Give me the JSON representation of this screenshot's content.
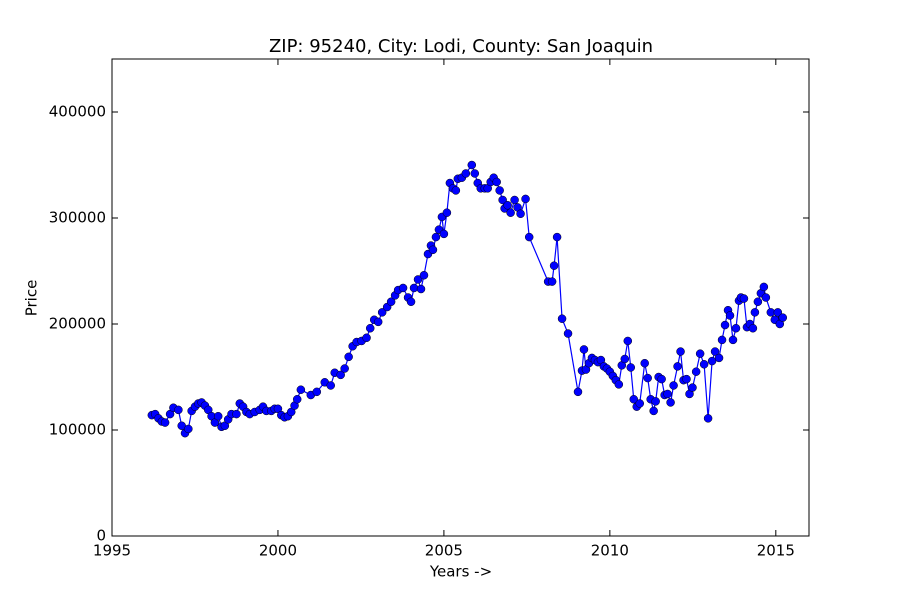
{
  "chart_data": {
    "type": "line",
    "title": "ZIP: 95240, City: Lodi, County: San Joaquin",
    "xlabel": "Years ->",
    "ylabel": "Price",
    "color": "#0000ff",
    "xlim": [
      1995,
      2016
    ],
    "ylim": [
      0,
      450000
    ],
    "xticks": [
      1995,
      2000,
      2005,
      2010,
      2015
    ],
    "yticks": [
      0,
      100000,
      200000,
      300000,
      400000
    ],
    "x": [
      1996.2,
      1996.3,
      1996.4,
      1996.5,
      1996.6,
      1996.75,
      1996.85,
      1997.0,
      1997.1,
      1997.2,
      1997.3,
      1997.4,
      1997.5,
      1997.6,
      1997.7,
      1997.8,
      1997.9,
      1998.0,
      1998.1,
      1998.2,
      1998.3,
      1998.4,
      1998.5,
      1998.6,
      1998.75,
      1998.85,
      1998.95,
      1999.05,
      1999.15,
      1999.3,
      1999.45,
      1999.55,
      1999.65,
      1999.8,
      1999.9,
      2000.0,
      2000.1,
      2000.2,
      2000.3,
      2000.4,
      2000.5,
      2000.58,
      2000.69,
      2000.99,
      2001.17,
      2001.41,
      2001.59,
      2001.71,
      2001.89,
      2002.01,
      2002.13,
      2002.25,
      2002.37,
      2002.52,
      2002.67,
      2002.78,
      2002.9,
      2003.02,
      2003.14,
      2003.29,
      2003.41,
      2003.53,
      2003.62,
      2003.77,
      2003.92,
      2004.01,
      2004.1,
      2004.22,
      2004.31,
      2004.4,
      2004.52,
      2004.61,
      2004.67,
      2004.76,
      2004.85,
      2004.94,
      2005.0,
      2005.09,
      2005.18,
      2005.27,
      2005.36,
      2005.42,
      2005.54,
      2005.66,
      2005.84,
      2005.93,
      2006.02,
      2006.11,
      2006.23,
      2006.32,
      2006.41,
      2006.5,
      2006.59,
      2006.68,
      2006.77,
      2006.83,
      2006.92,
      2007.01,
      2007.13,
      2007.22,
      2007.31,
      2007.46,
      2007.57,
      2008.14,
      2008.26,
      2008.32,
      2008.41,
      2008.56,
      2008.74,
      2009.04,
      2009.16,
      2009.22,
      2009.28,
      2009.37,
      2009.46,
      2009.55,
      2009.64,
      2009.73,
      2009.82,
      2009.91,
      2010.0,
      2010.09,
      2010.18,
      2010.27,
      2010.36,
      2010.45,
      2010.54,
      2010.63,
      2010.72,
      2010.81,
      2010.9,
      2011.05,
      2011.14,
      2011.23,
      2011.32,
      2011.38,
      2011.47,
      2011.56,
      2011.65,
      2011.74,
      2011.83,
      2011.92,
      2012.04,
      2012.13,
      2012.22,
      2012.31,
      2012.4,
      2012.49,
      2012.6,
      2012.72,
      2012.84,
      2012.96,
      2013.08,
      2013.17,
      2013.29,
      2013.38,
      2013.47,
      2013.56,
      2013.62,
      2013.71,
      2013.8,
      2013.89,
      2013.95,
      2014.04,
      2014.13,
      2014.22,
      2014.31,
      2014.37,
      2014.46,
      2014.55,
      2014.64,
      2014.7,
      2014.85,
      2014.97,
      2015.06,
      2015.12,
      2015.21
    ],
    "values": [
      114000,
      115000,
      111000,
      108000,
      107000,
      115000,
      121000,
      119000,
      104000,
      97000,
      101000,
      118000,
      122000,
      125000,
      126000,
      123000,
      119000,
      113000,
      107000,
      113000,
      103000,
      104000,
      110000,
      115000,
      115000,
      125000,
      122000,
      117000,
      115000,
      117000,
      119000,
      122000,
      118000,
      118000,
      120000,
      120000,
      114000,
      112000,
      113000,
      117000,
      123000,
      129000,
      138000,
      133000,
      136000,
      145000,
      142000,
      154000,
      152000,
      158000,
      169000,
      179000,
      183000,
      184000,
      187000,
      196000,
      204000,
      202000,
      211000,
      216000,
      221000,
      227000,
      232000,
      234000,
      225000,
      221000,
      234000,
      242000,
      233000,
      246000,
      266000,
      274000,
      270000,
      282000,
      289000,
      301000,
      285000,
      305000,
      333000,
      328000,
      326000,
      337000,
      338000,
      342000,
      350000,
      342000,
      333000,
      328000,
      328000,
      328000,
      334000,
      338000,
      334000,
      326000,
      317000,
      309000,
      312000,
      305000,
      317000,
      310000,
      304000,
      318000,
      282000,
      240000,
      240000,
      255000,
      282000,
      205000,
      191000,
      136000,
      156000,
      176000,
      157000,
      163000,
      168000,
      166000,
      164000,
      166000,
      160000,
      158000,
      155000,
      151000,
      147000,
      143000,
      161000,
      167000,
      184000,
      159000,
      129000,
      122000,
      125000,
      163000,
      149000,
      129000,
      118000,
      127000,
      150000,
      148000,
      133000,
      134000,
      126000,
      142000,
      160000,
      174000,
      147000,
      148000,
      134000,
      140000,
      155000,
      172000,
      162000,
      111000,
      165000,
      174000,
      168000,
      185000,
      199000,
      213000,
      208000,
      185000,
      196000,
      222000,
      225000,
      224000,
      197000,
      200000,
      196000,
      211000,
      221000,
      229000,
      235000,
      225000,
      211000,
      204000,
      211000,
      200000,
      206000
    ]
  }
}
